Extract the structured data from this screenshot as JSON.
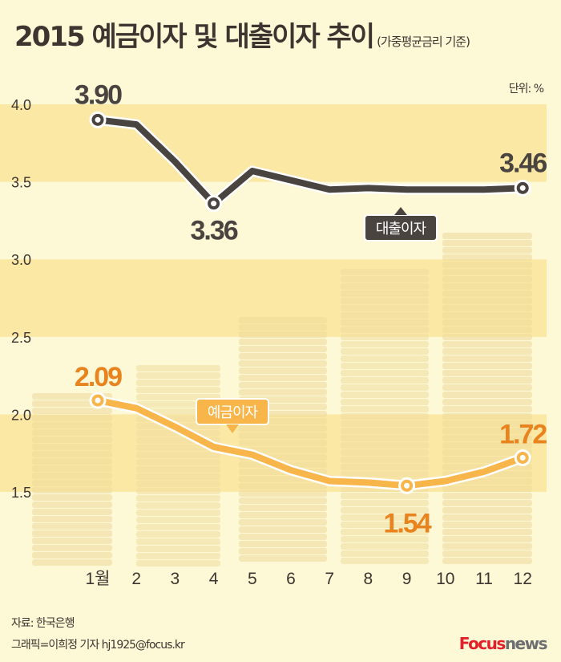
{
  "title": "2015 예금이자 및 대출이자 추이",
  "subtitle": "(가중평균금리 기준)",
  "unit": "단위: %",
  "footer": {
    "source": "자료: 한국은행",
    "credit": "그래픽=이희정 기자 hj1925@focus.kr"
  },
  "logo": {
    "part1": "Focus",
    "part2": "news"
  },
  "colors": {
    "loan": "#4a4440",
    "deposit": "#f7b54a",
    "deposit_label": "#e8831e",
    "band": "#fbe8a4",
    "background": "#fdf8d6"
  },
  "chart_data": {
    "type": "line",
    "title": "2015 예금이자 및 대출이자 추이",
    "categories": [
      "1월",
      "2",
      "3",
      "4",
      "5",
      "6",
      "7",
      "8",
      "9",
      "10",
      "11",
      "12"
    ],
    "ylim": [
      1.5,
      4.0
    ],
    "yticks": [
      "1.5",
      "2.0",
      "2.5",
      "3.0",
      "3.5",
      "4.0"
    ],
    "grid": "alternating bands",
    "series": [
      {
        "name": "대출이자",
        "values": [
          3.9,
          3.87,
          3.63,
          3.36,
          3.57,
          3.51,
          3.45,
          3.46,
          3.45,
          3.45,
          3.45,
          3.46
        ],
        "labels": [
          {
            "index": 0,
            "text": "3.90"
          },
          {
            "index": 3,
            "text": "3.36"
          },
          {
            "index": 11,
            "text": "3.46"
          }
        ]
      },
      {
        "name": "예금이자",
        "values": [
          2.09,
          2.04,
          1.92,
          1.79,
          1.74,
          1.64,
          1.57,
          1.56,
          1.54,
          1.57,
          1.63,
          1.72
        ],
        "labels": [
          {
            "index": 0,
            "text": "2.09"
          },
          {
            "index": 8,
            "text": "1.54"
          },
          {
            "index": 11,
            "text": "1.72"
          }
        ]
      }
    ]
  }
}
